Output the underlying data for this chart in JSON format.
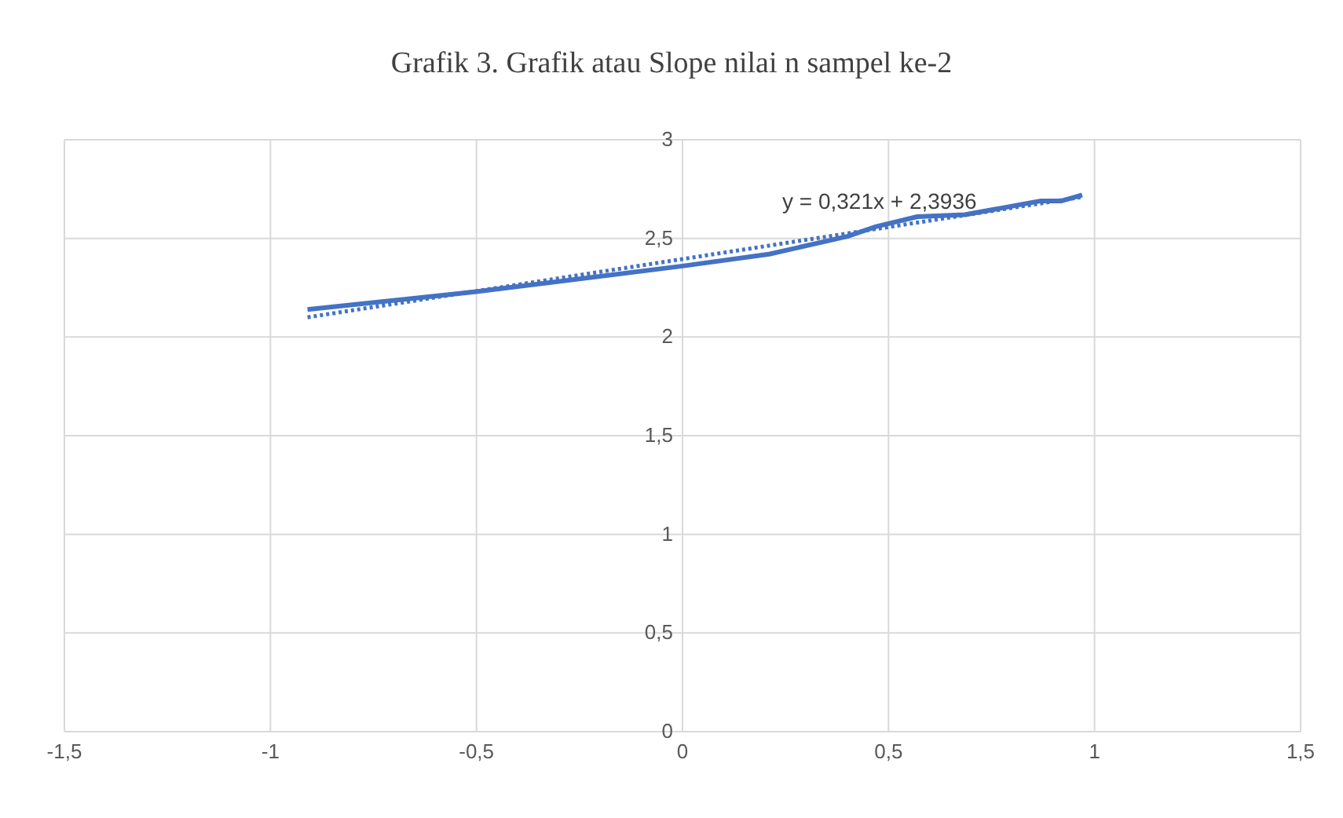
{
  "chart_data": {
    "type": "line",
    "title": "Grafik 3. Grafik atau Slope nilai n sampel ke-2",
    "series": [
      {
        "color": "#4472c4",
        "x": [
          -0.91,
          -0.5,
          0,
          0.21,
          0.4,
          0.47,
          0.57,
          0.685,
          0.87,
          0.92,
          0.97
        ],
        "values": [
          2.14,
          2.23,
          2.36,
          2.42,
          2.51,
          2.56,
          2.61,
          2.62,
          2.69,
          2.69,
          2.72
        ]
      },
      {
        "type": "line",
        "color": "#4472c4",
        "line_style": "dotted",
        "x": [
          -0.91,
          0.97
        ],
        "values": [
          2.1,
          2.71
        ]
      }
    ],
    "annotations": [
      "y = 0,321x + 2,3936"
    ],
    "xlim": [
      -1.5,
      1.5
    ],
    "xticks": [
      {
        "value": -1.5,
        "label": "-1,5"
      },
      -1,
      {
        "value": -0.5,
        "label": "-0,5"
      },
      0,
      {
        "value": 0.5,
        "label": "0,5"
      },
      1,
      {
        "value": 1.5,
        "label": "1,5"
      }
    ],
    "ylim": [
      0,
      3
    ],
    "yticks": [
      0,
      {
        "value": 0.5,
        "label": "0,5"
      },
      1,
      {
        "value": 1.5,
        "label": "1,5"
      },
      2,
      {
        "value": 2.5,
        "label": "2,5"
      },
      3
    ],
    "grid": true,
    "marker": "none",
    "line_style": "solid"
  }
}
